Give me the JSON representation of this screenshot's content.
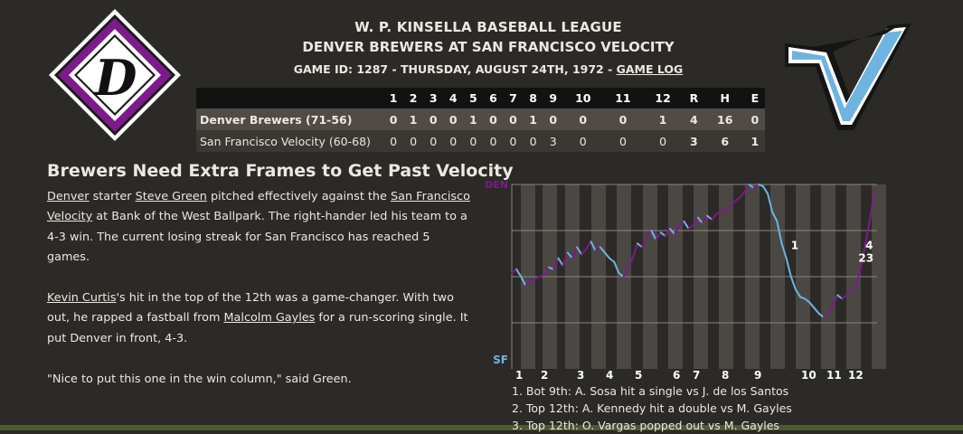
{
  "header": {
    "league": "W. P. KINSELLA BASEBALL LEAGUE",
    "matchup": "DENVER BREWERS AT SAN FRANCISCO VELOCITY",
    "game_id_text": "GAME ID: 1287 - THURSDAY, AUGUST 24TH, 1972 - ",
    "game_log_link": "GAME LOG"
  },
  "logos": {
    "home_logo_letter": "D",
    "away_logo_letter": "V",
    "home_colors": {
      "primary": "#7d1a8c",
      "border": "#ffffff",
      "fill": "#1a1a1a"
    },
    "away_colors": {
      "primary": "#6fb3e0",
      "outline": "#151515"
    }
  },
  "linescore": {
    "headers": [
      "",
      "1",
      "2",
      "3",
      "4",
      "5",
      "6",
      "7",
      "8",
      "9",
      "10",
      "11",
      "12",
      "R",
      "H",
      "E"
    ],
    "rows": [
      {
        "team": "Denver Brewers (71-56)",
        "innings": [
          "0",
          "1",
          "0",
          "0",
          "1",
          "0",
          "0",
          "1",
          "0",
          "0",
          "0",
          "1"
        ],
        "r": "4",
        "h": "16",
        "e": "0"
      },
      {
        "team": "San Francisco Velocity (60-68)",
        "innings": [
          "0",
          "0",
          "0",
          "0",
          "0",
          "0",
          "0",
          "0",
          "3",
          "0",
          "0",
          "0"
        ],
        "r": "3",
        "h": "6",
        "e": "1"
      }
    ]
  },
  "article": {
    "headline": "Brewers Need Extra Frames to Get Past Velocity",
    "p1": {
      "team_link": "Denver",
      "t1": " starter ",
      "pitcher_link": "Steve Green",
      "t2": " pitched effectively against the ",
      "opp_link": "San Francisco Velocity",
      "t3": " at Bank of the West Ballpark. The right-hander led his team to a 4-3 win. The current losing streak for San Francisco has reached 5 games."
    },
    "p2": {
      "batter_link": "Kevin Curtis",
      "t1": "'s hit in the top of the 12th was a game-changer. With two out, he rapped a fastball from ",
      "pitcher_link": "Malcolm Gayles",
      "t2": " for a run-scoring single. It put Denver in front, 4-3."
    },
    "p3": "\"Nice to put this one in the win column,\" said Green."
  },
  "chart_data": {
    "type": "line",
    "title": "",
    "top_label": "DEN",
    "bottom_label": "SF",
    "inning_labels": [
      "1",
      "2",
      "3",
      "4",
      "5",
      "6",
      "7",
      "8",
      "9",
      "10",
      "11",
      "12"
    ],
    "x_range": [
      0,
      157
    ],
    "y_range": [
      0,
      1
    ],
    "colors": {
      "away": "#7d1a8c",
      "home": "#6fb3e0"
    },
    "series": [
      {
        "values": [
          [
            0,
            0.52
          ],
          [
            2,
            0.54
          ],
          [
            4,
            0.5
          ],
          [
            6,
            0.45
          ],
          [
            8,
            0.48
          ],
          [
            10,
            0.49
          ],
          [
            12,
            0.5
          ],
          [
            14,
            0.51
          ],
          [
            16,
            0.55
          ],
          [
            18,
            0.54
          ],
          [
            20,
            0.6
          ],
          [
            22,
            0.56
          ],
          [
            24,
            0.63
          ],
          [
            26,
            0.6
          ],
          [
            28,
            0.66
          ],
          [
            30,
            0.62
          ],
          [
            32,
            0.65
          ],
          [
            34,
            0.69
          ],
          [
            36,
            0.64
          ],
          [
            38,
            0.66
          ],
          [
            40,
            0.63
          ],
          [
            42,
            0.6
          ],
          [
            44,
            0.58
          ],
          [
            46,
            0.52
          ],
          [
            48,
            0.5
          ],
          [
            50,
            0.55
          ],
          [
            52,
            0.6
          ],
          [
            54,
            0.68
          ],
          [
            56,
            0.66
          ],
          [
            58,
            0.72
          ],
          [
            60,
            0.75
          ],
          [
            62,
            0.7
          ],
          [
            64,
            0.74
          ],
          [
            66,
            0.72
          ],
          [
            68,
            0.76
          ],
          [
            70,
            0.73
          ],
          [
            72,
            0.78
          ],
          [
            74,
            0.8
          ],
          [
            76,
            0.76
          ],
          [
            78,
            0.78
          ],
          [
            80,
            0.82
          ],
          [
            82,
            0.79
          ],
          [
            84,
            0.83
          ],
          [
            86,
            0.81
          ],
          [
            88,
            0.84
          ],
          [
            90,
            0.85
          ],
          [
            92,
            0.86
          ],
          [
            94,
            0.88
          ],
          [
            96,
            0.91
          ],
          [
            98,
            0.93
          ],
          [
            100,
            0.96
          ],
          [
            102,
            1.0
          ],
          [
            104,
            0.98
          ],
          [
            106,
            1.0
          ],
          [
            108,
            0.99
          ],
          [
            110,
            0.95
          ],
          [
            112,
            0.85
          ],
          [
            114,
            0.8
          ],
          [
            116,
            0.68
          ],
          [
            118,
            0.6
          ],
          [
            120,
            0.5
          ],
          [
            122,
            0.43
          ],
          [
            124,
            0.39
          ],
          [
            126,
            0.38
          ],
          [
            128,
            0.36
          ],
          [
            130,
            0.33
          ],
          [
            132,
            0.3
          ],
          [
            134,
            0.28
          ],
          [
            136,
            0.3
          ],
          [
            138,
            0.35
          ],
          [
            140,
            0.4
          ],
          [
            142,
            0.38
          ],
          [
            144,
            0.4
          ],
          [
            146,
            0.42
          ],
          [
            148,
            0.45
          ],
          [
            150,
            0.55
          ],
          [
            152,
            0.68
          ],
          [
            154,
            0.82
          ],
          [
            156,
            0.97
          ]
        ]
      }
    ],
    "annotations": [
      {
        "label": "1",
        "x": 120,
        "y": 0.65
      },
      {
        "label": "23",
        "x": 149,
        "y": 0.58
      },
      {
        "label": "4",
        "x": 152,
        "y": 0.65
      }
    ],
    "notes": [
      "1. Bot 9th: A. Sosa hit a single vs J. de los Santos",
      "2. Top 12th: A. Kennedy hit a double vs M. Gayles",
      "3. Top 12th: O. Vargas popped out vs M. Gayles"
    ]
  }
}
